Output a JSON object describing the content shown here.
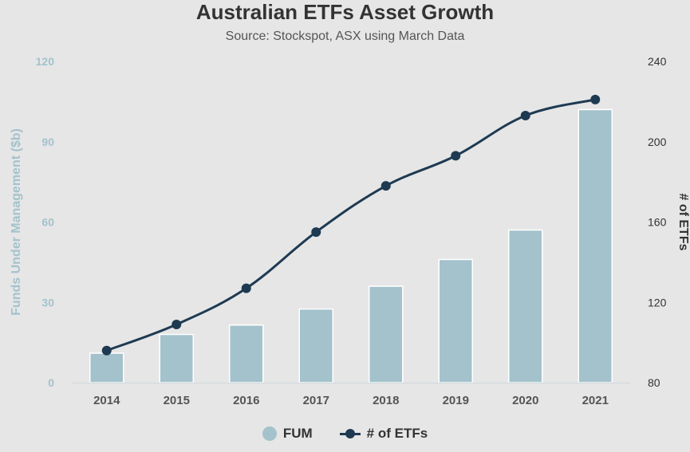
{
  "chart_data": {
    "type": "bar",
    "title": "Australian ETFs Asset Growth",
    "subtitle": "Source: Stockspot, ASX using March Data",
    "categories": [
      "2014",
      "2015",
      "2016",
      "2017",
      "2018",
      "2019",
      "2020",
      "2021"
    ],
    "series": [
      {
        "name": "FUM",
        "type": "bar",
        "axis": "left",
        "color": "#a3c2cc",
        "values": [
          11,
          18,
          21.5,
          27.5,
          36,
          46,
          57,
          102
        ]
      },
      {
        "name": "# of ETFs",
        "type": "line",
        "axis": "right",
        "color": "#1e3a52",
        "values": [
          96,
          109,
          127,
          155,
          178,
          193,
          213,
          221
        ]
      }
    ],
    "ylabel": "Funds Under Management ($b)",
    "y2label": "# of ETFs",
    "ylim": [
      0,
      120
    ],
    "yticks": [
      0,
      30,
      60,
      90,
      120
    ],
    "y2lim": [
      80,
      240
    ],
    "y2ticks": [
      80,
      120,
      160,
      200,
      240
    ],
    "left_axis_color": "#a3c2cc",
    "right_axis_color": "#333333",
    "legend": "bottom-center",
    "grid": false
  }
}
